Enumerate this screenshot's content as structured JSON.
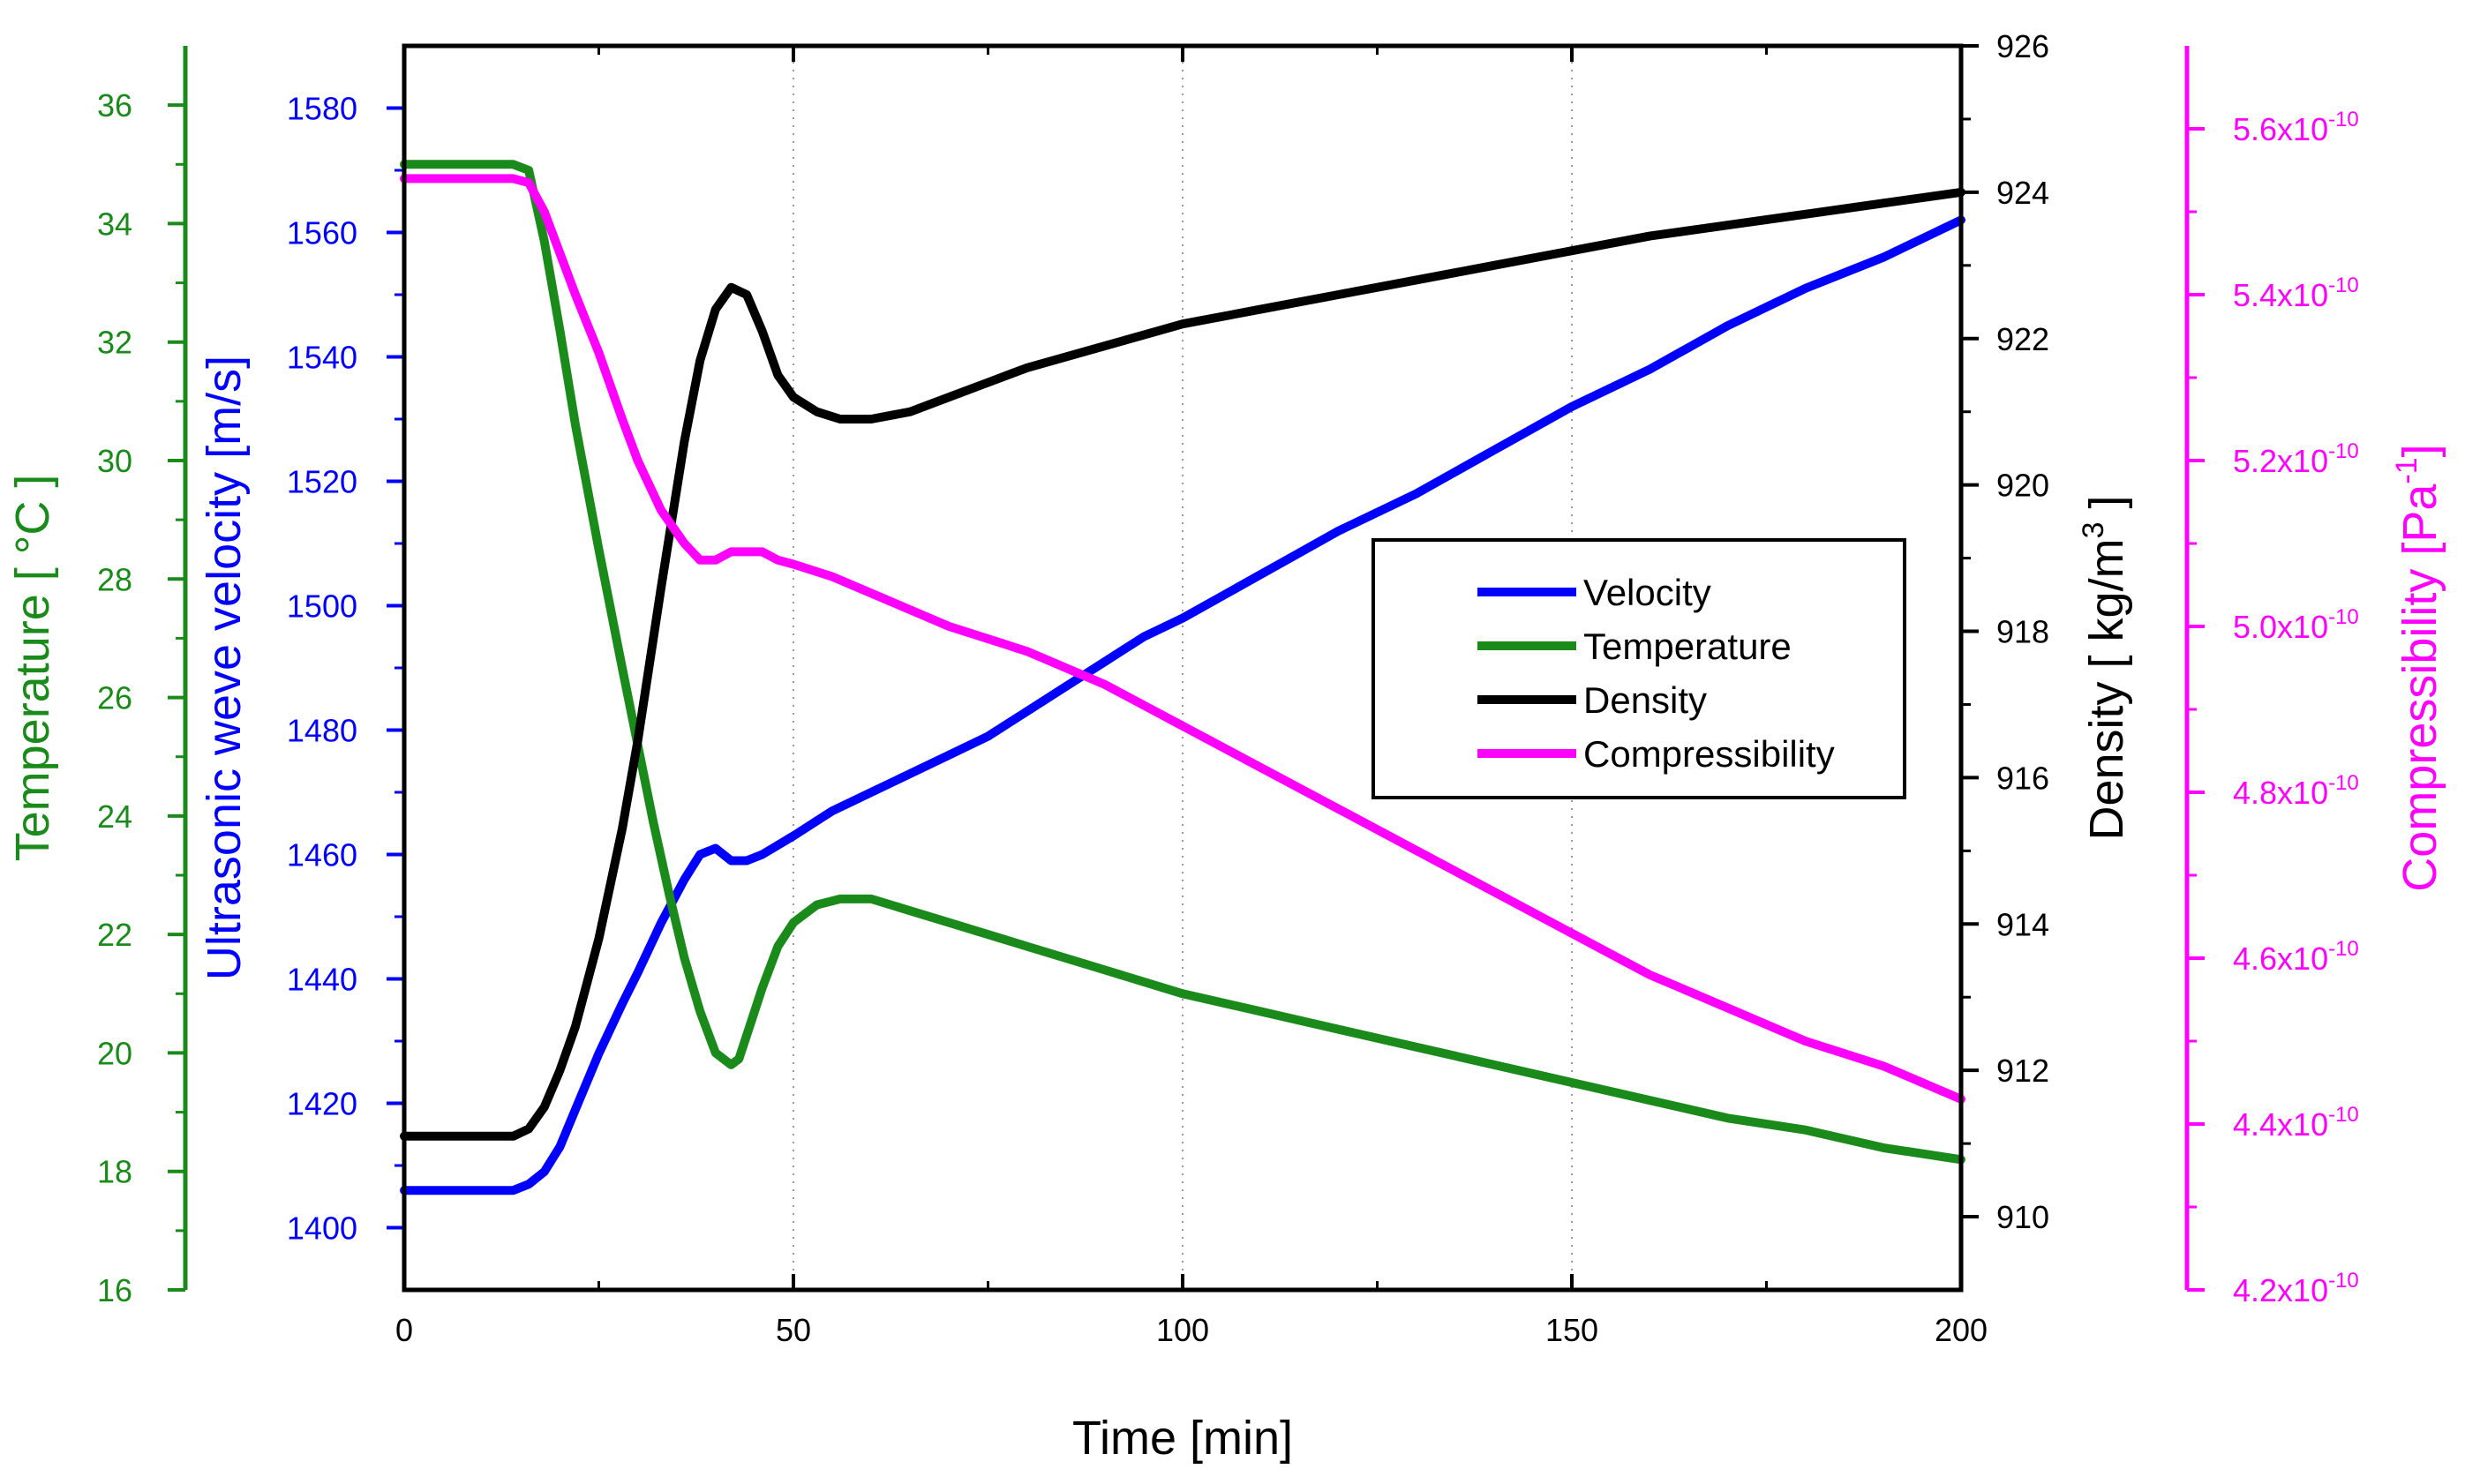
{
  "chart_data": {
    "type": "line",
    "xlabel": "Time [min]",
    "xlim": [
      0,
      200
    ],
    "xticks": [
      0,
      50,
      100,
      150,
      200
    ],
    "grid": true,
    "legend_position": "right-center",
    "axes": [
      {
        "key": "temperature",
        "side": "left-outer",
        "label": "Temperature [ °C ]",
        "color": "#1a8a1a",
        "ylim": [
          16,
          37
        ],
        "ticks": [
          "16",
          "18",
          "20",
          "22",
          "24",
          "26",
          "28",
          "30",
          "32",
          "34",
          "36"
        ]
      },
      {
        "key": "velocity",
        "side": "left-inner",
        "label": "Ultrasonic weve velocity [m/s]",
        "color": "#0000ff",
        "ylim": [
          1390,
          1590
        ],
        "ticks": [
          "1400",
          "1420",
          "1440",
          "1460",
          "1480",
          "1500",
          "1520",
          "1540",
          "1560",
          "1580"
        ]
      },
      {
        "key": "density",
        "side": "right-inner",
        "label": "Density [ kg/m",
        "label_superscript": "3",
        "label_suffix": " ]",
        "color": "#000000",
        "ylim": [
          909,
          926
        ],
        "ticks": [
          "910",
          "912",
          "914",
          "916",
          "918",
          "920",
          "922",
          "924",
          "926"
        ]
      },
      {
        "key": "compressibility",
        "side": "right-outer",
        "label": "Compressibility [Pa",
        "label_superscript": "-1",
        "label_suffix": "]",
        "color": "#ff00ff",
        "ylim": [
          4.2e-10,
          5.7e-10
        ],
        "ticks": [
          "4.2x10",
          "4.4x10",
          "4.6x10",
          "4.8x10",
          "5.0x10",
          "5.2x10",
          "5.4x10",
          "5.6x10"
        ],
        "tick_exponent": "-10"
      }
    ],
    "series": [
      {
        "name": "Velocity",
        "axis": "velocity",
        "color": "#0000ff",
        "x": [
          0,
          5,
          10,
          14,
          16,
          18,
          20,
          22,
          25,
          28,
          30,
          33,
          36,
          38,
          40,
          42,
          44,
          46,
          50,
          55,
          60,
          65,
          70,
          75,
          80,
          85,
          90,
          95,
          100,
          110,
          120,
          130,
          140,
          150,
          160,
          170,
          180,
          190,
          200
        ],
        "y": [
          1406,
          1406,
          1406,
          1406,
          1407,
          1409,
          1413,
          1419,
          1428,
          1436,
          1441,
          1449,
          1456,
          1460,
          1461,
          1459,
          1459,
          1460,
          1463,
          1467,
          1470,
          1473,
          1476,
          1479,
          1483,
          1487,
          1491,
          1495,
          1498,
          1505,
          1512,
          1518,
          1525,
          1532,
          1538,
          1545,
          1551,
          1556,
          1562
        ]
      },
      {
        "name": "Temperature",
        "axis": "temperature",
        "color": "#1a8a1a",
        "x": [
          0,
          5,
          10,
          14,
          16,
          18,
          20,
          22,
          25,
          28,
          30,
          32,
          34,
          36,
          38,
          40,
          42,
          43,
          44,
          46,
          48,
          50,
          53,
          56,
          60,
          65,
          70,
          80,
          90,
          100,
          110,
          120,
          130,
          140,
          150,
          160,
          170,
          180,
          190,
          200
        ],
        "y": [
          35,
          35,
          35,
          35,
          34.9,
          33.7,
          32.2,
          30.6,
          28.5,
          26.5,
          25.2,
          23.9,
          22.7,
          21.6,
          20.7,
          20.0,
          19.8,
          19.9,
          20.3,
          21.1,
          21.8,
          22.2,
          22.5,
          22.6,
          22.6,
          22.4,
          22.2,
          21.8,
          21.4,
          21.0,
          20.7,
          20.4,
          20.1,
          19.8,
          19.5,
          19.2,
          18.9,
          18.7,
          18.4,
          18.2
        ]
      },
      {
        "name": "Density",
        "axis": "density",
        "color": "#000000",
        "x": [
          0,
          5,
          10,
          14,
          16,
          18,
          20,
          22,
          25,
          28,
          30,
          33,
          36,
          38,
          40,
          42,
          44,
          46,
          48,
          50,
          53,
          56,
          60,
          65,
          70,
          75,
          80,
          90,
          100,
          110,
          120,
          130,
          140,
          150,
          160,
          170,
          180,
          190,
          200
        ],
        "y": [
          911.1,
          911.1,
          911.1,
          911.1,
          911.2,
          911.5,
          912.0,
          912.6,
          913.8,
          915.3,
          916.5,
          918.6,
          920.6,
          921.7,
          922.4,
          922.7,
          922.6,
          922.1,
          921.5,
          921.2,
          921.0,
          920.9,
          920.9,
          921.0,
          921.2,
          921.4,
          921.6,
          921.9,
          922.2,
          922.4,
          922.6,
          922.8,
          923.0,
          923.2,
          923.4,
          923.55,
          923.7,
          923.85,
          924.0
        ]
      },
      {
        "name": "Compressibility",
        "axis": "compressibility",
        "color": "#ff00ff",
        "x": [
          0,
          5,
          10,
          14,
          16,
          18,
          20,
          22,
          25,
          28,
          30,
          33,
          36,
          38,
          40,
          42,
          44,
          46,
          48,
          50,
          55,
          60,
          65,
          70,
          80,
          90,
          100,
          110,
          120,
          130,
          140,
          150,
          160,
          170,
          180,
          190,
          200
        ],
        "y": [
          5.54e-10,
          5.54e-10,
          5.54e-10,
          5.54e-10,
          5.535e-10,
          5.5e-10,
          5.45e-10,
          5.4e-10,
          5.33e-10,
          5.25e-10,
          5.2e-10,
          5.14e-10,
          5.1e-10,
          5.08e-10,
          5.08e-10,
          5.09e-10,
          5.09e-10,
          5.09e-10,
          5.08e-10,
          5.075e-10,
          5.06e-10,
          5.04e-10,
          5.02e-10,
          5e-10,
          4.97e-10,
          4.93e-10,
          4.88e-10,
          4.83e-10,
          4.78e-10,
          4.73e-10,
          4.68e-10,
          4.63e-10,
          4.58e-10,
          4.54e-10,
          4.5e-10,
          4.47e-10,
          4.43e-10
        ]
      }
    ]
  }
}
